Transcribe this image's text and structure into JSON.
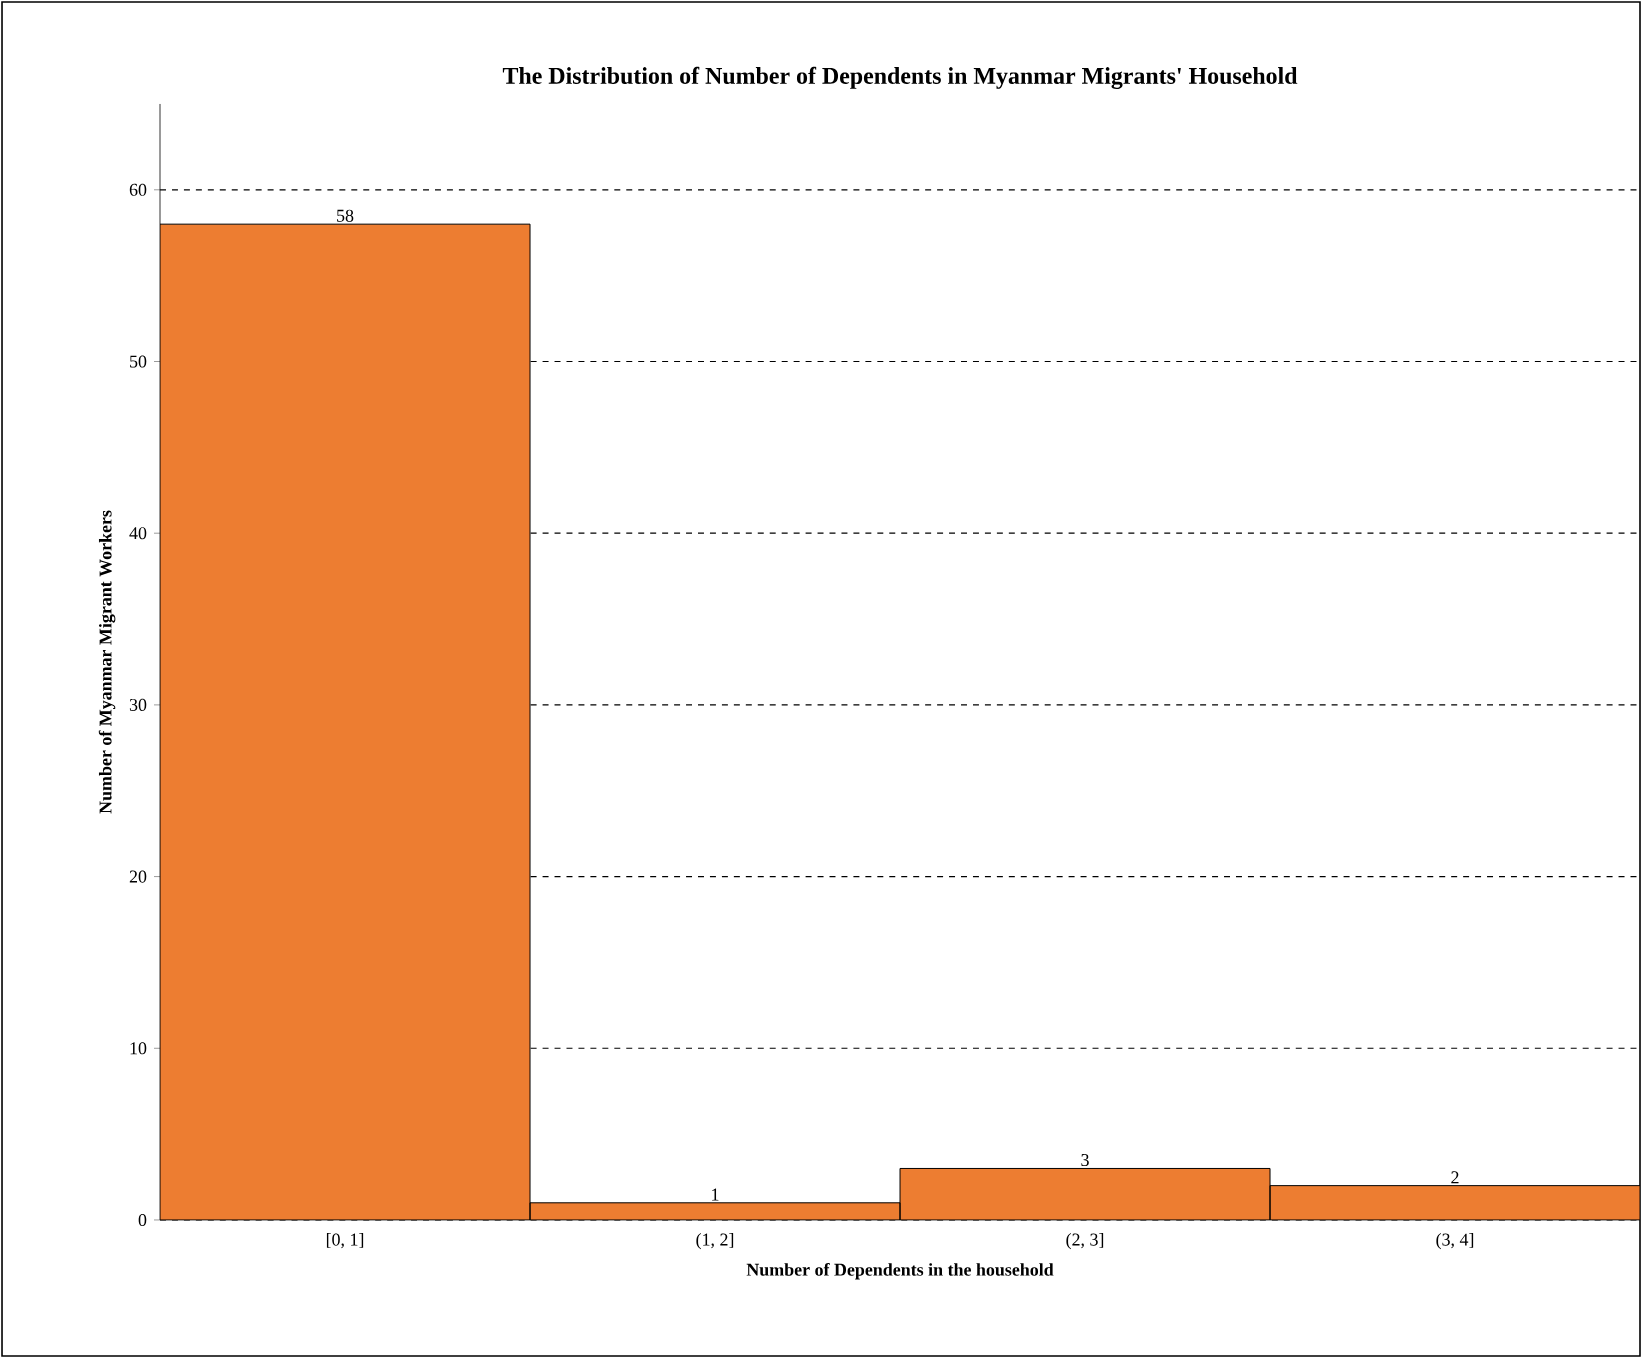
{
  "chart_data": {
    "type": "bar",
    "title": "The Distribution of Number of Dependents in Myanmar Migrants' Household",
    "xlabel": "Number of Dependents in the household",
    "ylabel": "Number of  Myanmar Migrant Workers",
    "categories": [
      "[0, 1]",
      "(1, 2]",
      "(2, 3]",
      "(3, 4]"
    ],
    "values": [
      58,
      1,
      3,
      2
    ],
    "color": "#ed7d31",
    "ylim": [
      0,
      65
    ],
    "yticks": [
      0,
      10,
      20,
      30,
      40,
      50,
      60
    ],
    "grid": "y",
    "line_style": "dashed",
    "data_labels": true
  }
}
